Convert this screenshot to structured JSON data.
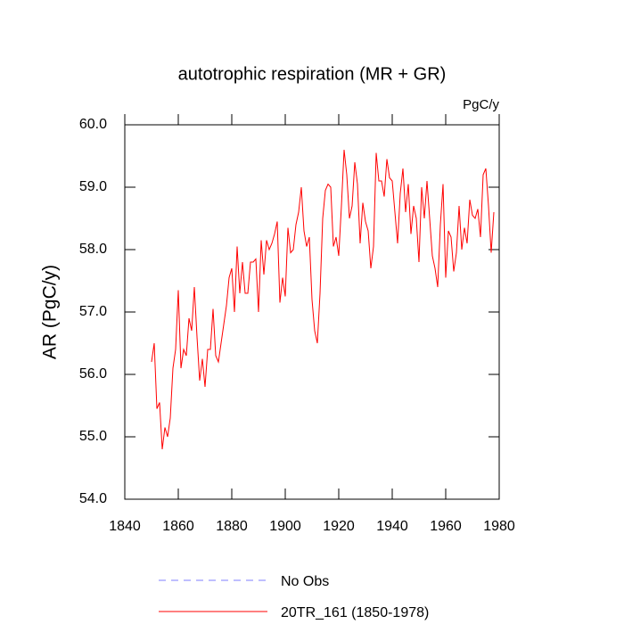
{
  "chart_data": {
    "type": "line",
    "title": "autotrophic respiration (MR + GR)",
    "units": "PgC/y",
    "y_label": "AR  (PgC/y)",
    "x": [
      1850,
      1851,
      1852,
      1853,
      1854,
      1855,
      1856,
      1857,
      1858,
      1859,
      1860,
      1861,
      1862,
      1863,
      1864,
      1865,
      1866,
      1867,
      1868,
      1869,
      1870,
      1871,
      1872,
      1873,
      1874,
      1875,
      1876,
      1877,
      1878,
      1879,
      1880,
      1881,
      1882,
      1883,
      1884,
      1885,
      1886,
      1887,
      1888,
      1889,
      1890,
      1891,
      1892,
      1893,
      1894,
      1895,
      1896,
      1897,
      1898,
      1899,
      1900,
      1901,
      1902,
      1903,
      1904,
      1905,
      1906,
      1907,
      1908,
      1909,
      1910,
      1911,
      1912,
      1913,
      1914,
      1915,
      1916,
      1917,
      1918,
      1919,
      1920,
      1921,
      1922,
      1923,
      1924,
      1925,
      1926,
      1927,
      1928,
      1929,
      1930,
      1931,
      1932,
      1933,
      1934,
      1935,
      1936,
      1937,
      1938,
      1939,
      1940,
      1941,
      1942,
      1943,
      1944,
      1945,
      1946,
      1947,
      1948,
      1949,
      1950,
      1951,
      1952,
      1953,
      1954,
      1955,
      1956,
      1957,
      1958,
      1959,
      1960,
      1961,
      1962,
      1963,
      1964,
      1965,
      1966,
      1967,
      1968,
      1969,
      1970,
      1971,
      1972,
      1973,
      1974,
      1975,
      1976,
      1977,
      1978
    ],
    "series": [
      {
        "name": "No Obs",
        "color": "#7f7fff",
        "dashed": true,
        "values": [
          null,
          null,
          null,
          null,
          null,
          null,
          null,
          null,
          null,
          null,
          null,
          null,
          null,
          null,
          null,
          null,
          null,
          null,
          null,
          null,
          null,
          null,
          null,
          null,
          null,
          null,
          null,
          null,
          null,
          null,
          null,
          null,
          null,
          null,
          null,
          null,
          null,
          null,
          null,
          null,
          null,
          null,
          null,
          null,
          null,
          null,
          null,
          null,
          null,
          null,
          null,
          null,
          null,
          null,
          null,
          null,
          null,
          null,
          null,
          null,
          null,
          null,
          null,
          null,
          null,
          null,
          null,
          null,
          null,
          null,
          null,
          null,
          null,
          null,
          null,
          null,
          null,
          null,
          null,
          null,
          null,
          null,
          null,
          null,
          null,
          null,
          null,
          null,
          null,
          null,
          null,
          null,
          null,
          null,
          null,
          null,
          null,
          null,
          null,
          null,
          null,
          null,
          null,
          null,
          null,
          null,
          null,
          null,
          null,
          null,
          null,
          null,
          null,
          null,
          null,
          null,
          null,
          null,
          null,
          null,
          null,
          null,
          null,
          null,
          null,
          null,
          null,
          null,
          null
        ]
      },
      {
        "name": "20TR_161 (1850-1978)",
        "color": "#ff0000",
        "dashed": false,
        "values": [
          56.2,
          56.5,
          55.45,
          55.55,
          54.8,
          55.15,
          55.0,
          55.3,
          56.1,
          56.4,
          57.35,
          56.1,
          56.4,
          56.3,
          56.9,
          56.7,
          57.4,
          56.6,
          55.9,
          56.25,
          55.8,
          56.4,
          56.4,
          57.05,
          56.3,
          56.2,
          56.5,
          56.8,
          57.1,
          57.55,
          57.7,
          57.0,
          58.05,
          57.3,
          57.8,
          57.3,
          57.3,
          57.8,
          57.8,
          57.85,
          57.0,
          58.15,
          57.6,
          58.15,
          58.0,
          58.1,
          58.25,
          58.45,
          57.15,
          57.55,
          57.25,
          58.35,
          57.95,
          58.0,
          58.4,
          58.6,
          59.0,
          58.3,
          58.05,
          58.2,
          57.2,
          56.7,
          56.5,
          57.3,
          58.5,
          58.95,
          59.05,
          59.0,
          58.05,
          58.2,
          57.9,
          58.7,
          59.6,
          59.2,
          58.5,
          58.7,
          59.4,
          59.05,
          58.1,
          58.75,
          58.45,
          58.3,
          57.7,
          58.05,
          59.55,
          59.1,
          59.1,
          58.85,
          59.45,
          59.15,
          59.1,
          58.6,
          58.1,
          58.9,
          59.3,
          58.6,
          59.05,
          58.25,
          58.7,
          58.5,
          57.8,
          59.0,
          58.5,
          59.1,
          58.5,
          57.9,
          57.7,
          57.4,
          58.4,
          59.05,
          57.55,
          58.3,
          58.2,
          57.65,
          57.95,
          58.7,
          58.0,
          58.35,
          58.1,
          58.8,
          58.55,
          58.5,
          58.65,
          58.2,
          59.2,
          59.3,
          58.7,
          57.95,
          58.6
        ]
      }
    ],
    "xlim": [
      1840,
      1980
    ],
    "xticks": [
      1840,
      1860,
      1880,
      1900,
      1920,
      1940,
      1960,
      1980
    ],
    "ylim": [
      54,
      60
    ],
    "yticks": [
      {
        "value": 54,
        "label": "54.0"
      },
      {
        "value": 55,
        "label": "55.0"
      },
      {
        "value": 56,
        "label": "56.0"
      },
      {
        "value": 57,
        "label": "57.0"
      },
      {
        "value": 58,
        "label": "58.0"
      },
      {
        "value": 59,
        "label": "59.0"
      },
      {
        "value": 60,
        "label": "60.0"
      }
    ],
    "grid": false
  }
}
